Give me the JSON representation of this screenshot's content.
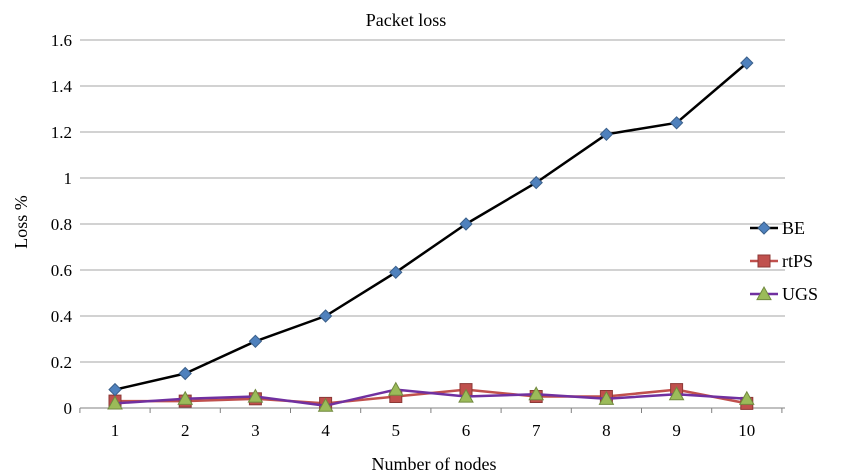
{
  "chart_data": {
    "type": "line",
    "title": "Packet loss",
    "xlabel": "Number of nodes",
    "ylabel": "Loss %",
    "categories": [
      "1",
      "2",
      "3",
      "4",
      "5",
      "6",
      "7",
      "8",
      "9",
      "10"
    ],
    "ylim": [
      0,
      1.6
    ],
    "yticks": [
      0,
      0.2,
      0.4,
      0.6,
      0.8,
      1,
      1.2,
      1.4,
      1.6
    ],
    "ytick_labels": [
      "0",
      "0.2",
      "0.4",
      "0.6",
      "0.8",
      "1",
      "1.2",
      "1.4",
      "1.6"
    ],
    "grid": true,
    "legend_position": "right",
    "series": [
      {
        "name": "BE",
        "marker": "diamond",
        "line_color": "#000000",
        "marker_color": "#4f81bd",
        "values": [
          0.08,
          0.15,
          0.29,
          0.4,
          0.59,
          0.8,
          0.98,
          1.19,
          1.24,
          1.5
        ]
      },
      {
        "name": "rtPS",
        "marker": "square",
        "line_color": "#c0504d",
        "marker_color": "#c0504d",
        "values": [
          0.03,
          0.03,
          0.04,
          0.02,
          0.05,
          0.08,
          0.05,
          0.05,
          0.08,
          0.02
        ]
      },
      {
        "name": "UGS",
        "marker": "triangle",
        "line_color": "#7030a0",
        "marker_color": "#9bbb59",
        "values": [
          0.02,
          0.04,
          0.05,
          0.01,
          0.08,
          0.05,
          0.06,
          0.04,
          0.06,
          0.04
        ]
      }
    ]
  }
}
